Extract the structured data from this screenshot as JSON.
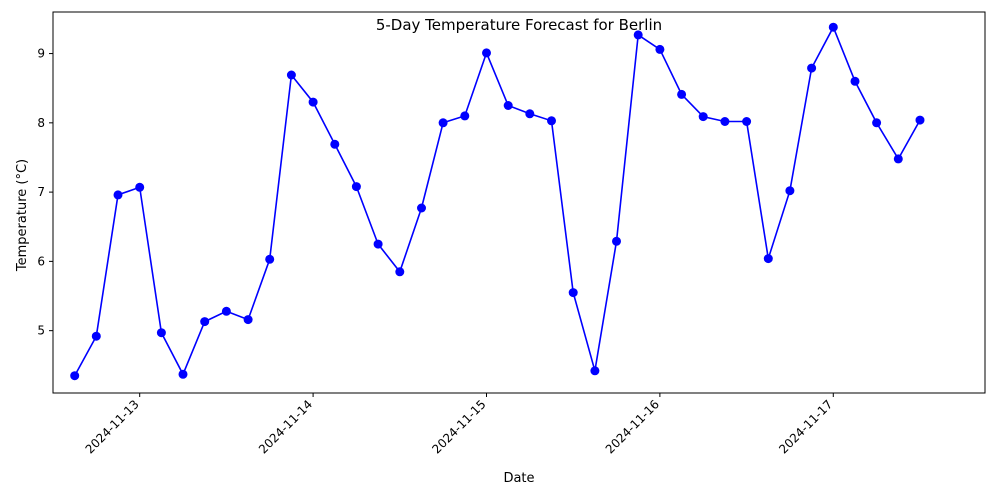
{
  "chart_data": {
    "type": "line",
    "title": "5-Day Temperature Forecast for  Berlin",
    "xlabel": "Date",
    "ylabel": "Temperature (°C)",
    "x_ticks": [
      "2024-11-13",
      "2024-11-14",
      "2024-11-15",
      "2024-11-16",
      "2024-11-17"
    ],
    "y_ticks": [
      5,
      6,
      7,
      8,
      9
    ],
    "ylim": [
      4.1,
      9.6
    ],
    "xlim": [
      "2024-11-12 12:00",
      "2024-11-17 21:00"
    ],
    "grid": false,
    "line_color": "#0000ff",
    "marker": "circle",
    "series": [
      {
        "x": [
          "2024-11-12 15:00",
          "2024-11-12 18:00",
          "2024-11-12 21:00",
          "2024-11-13 00:00",
          "2024-11-13 03:00",
          "2024-11-13 06:00",
          "2024-11-13 09:00",
          "2024-11-13 12:00",
          "2024-11-13 15:00",
          "2024-11-13 18:00",
          "2024-11-13 21:00",
          "2024-11-14 00:00",
          "2024-11-14 03:00",
          "2024-11-14 06:00",
          "2024-11-14 09:00",
          "2024-11-14 12:00",
          "2024-11-14 15:00",
          "2024-11-14 18:00",
          "2024-11-14 21:00",
          "2024-11-15 00:00",
          "2024-11-15 03:00",
          "2024-11-15 06:00",
          "2024-11-15 09:00",
          "2024-11-15 12:00",
          "2024-11-15 15:00",
          "2024-11-15 18:00",
          "2024-11-15 21:00",
          "2024-11-16 00:00",
          "2024-11-16 03:00",
          "2024-11-16 06:00",
          "2024-11-16 09:00",
          "2024-11-16 12:00",
          "2024-11-16 15:00",
          "2024-11-16 18:00",
          "2024-11-16 21:00",
          "2024-11-17 00:00",
          "2024-11-17 03:00",
          "2024-11-17 06:00",
          "2024-11-17 09:00",
          "2024-11-17 12:00"
        ],
        "values": [
          4.35,
          4.92,
          6.96,
          7.07,
          4.97,
          4.37,
          5.13,
          5.28,
          5.16,
          6.03,
          8.69,
          8.3,
          7.69,
          7.08,
          6.25,
          5.85,
          6.77,
          8.0,
          8.1,
          9.01,
          8.25,
          8.13,
          8.03,
          5.55,
          4.42,
          6.29,
          9.27,
          9.06,
          8.41,
          8.09,
          8.02,
          8.02,
          6.04,
          7.02,
          8.79,
          9.38,
          8.6,
          8.0,
          7.48,
          8.04
        ]
      }
    ]
  }
}
